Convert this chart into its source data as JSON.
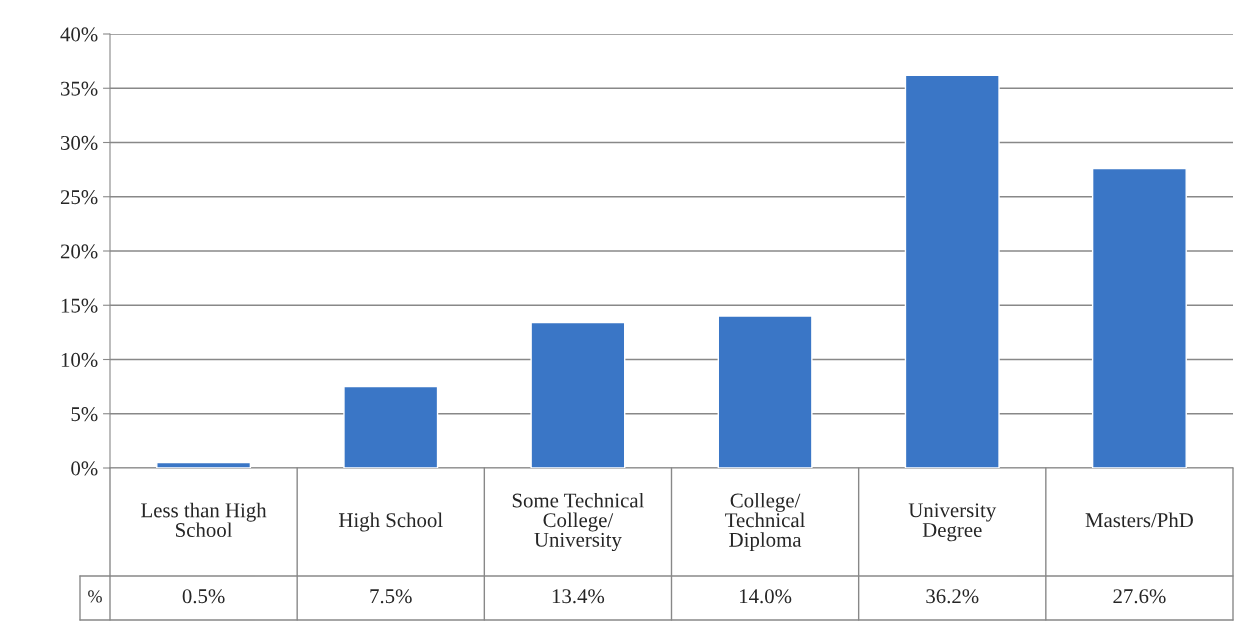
{
  "chart_data": {
    "type": "bar",
    "categories": [
      "Less than High\nSchool",
      "High School",
      "Some Technical\nCollege/\nUniversity",
      "College/\nTechnical\nDiploma",
      "University\nDegree",
      "Masters/PhD"
    ],
    "series": [
      {
        "name": "%",
        "color": "#3a76c6",
        "values": [
          0.5,
          7.5,
          13.4,
          14.0,
          36.2,
          27.6
        ],
        "value_labels": [
          "0.5%",
          "7.5%",
          "13.4%",
          "14.0%",
          "36.2%",
          "27.6%"
        ]
      }
    ],
    "ylim": [
      0,
      40
    ],
    "yticks": [
      {
        "value": 0,
        "label": "0%"
      },
      {
        "value": 5,
        "label": "5%"
      },
      {
        "value": 10,
        "label": "10%"
      },
      {
        "value": 15,
        "label": "15%"
      },
      {
        "value": 20,
        "label": "20%"
      },
      {
        "value": 25,
        "label": "25%"
      },
      {
        "value": 30,
        "label": "30%"
      },
      {
        "value": 35,
        "label": "35%"
      },
      {
        "value": 40,
        "label": "40%"
      }
    ],
    "grid": "y"
  }
}
